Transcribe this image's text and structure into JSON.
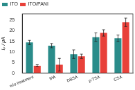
{
  "chart_data": {
    "type": "bar",
    "y_label": "Iₚ / μA",
    "categories": [
      "w/o treatment",
      "IPA",
      "DBSA",
      "p-TSA",
      "CSA"
    ],
    "series": [
      {
        "name": "ITO",
        "color": "#2a8c8a",
        "values": [
          14.5,
          13,
          9,
          17,
          16.5
        ],
        "errors": [
          1,
          1,
          2,
          2,
          1.5
        ]
      },
      {
        "name": "ITO/PANI",
        "color": "#e8413a",
        "values": [
          3.5,
          4,
          8,
          19,
          24
        ],
        "errors": [
          0.5,
          3,
          1,
          1.5,
          2
        ]
      }
    ],
    "ylim": [
      0,
      28
    ],
    "yticks": [
      0,
      5,
      10,
      15,
      20,
      25
    ],
    "grid": false,
    "legend": "upper left"
  }
}
